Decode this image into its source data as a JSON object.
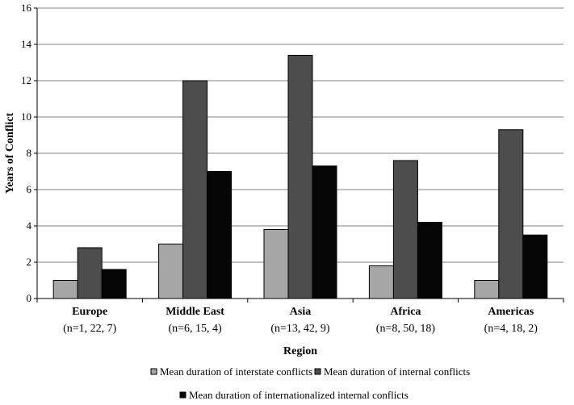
{
  "chart_data": {
    "type": "bar",
    "title": "",
    "xlabel": "Region",
    "ylabel": "Years of Conflict",
    "ylim": [
      0,
      16
    ],
    "yticks": [
      "0",
      "2",
      "4",
      "6",
      "8",
      "10",
      "12",
      "14",
      "16"
    ],
    "grid": true,
    "legend_position": "bottom",
    "categories": [
      "Europe",
      "Middle East",
      "Asia",
      "Africa",
      "Americas"
    ],
    "category_sublabels": [
      "(n=1, 22, 7)",
      "(n=6, 15, 4)",
      "(n=13, 42, 9)",
      "(n=8, 50, 18)",
      "(n=4, 18, 2)"
    ],
    "series": [
      {
        "name": "Mean duration of interstate conflicts",
        "color": "#a6a6a6",
        "values": [
          1.0,
          3.0,
          3.8,
          1.8,
          1.0
        ]
      },
      {
        "name": "Mean duration of internal conflicts",
        "color": "#4d4d4d",
        "values": [
          2.8,
          12.0,
          13.4,
          7.6,
          9.3
        ]
      },
      {
        "name": "Mean duration of internationalized internal conflicts",
        "color": "#050505",
        "values": [
          1.6,
          7.0,
          7.3,
          4.2,
          3.5
        ]
      }
    ]
  }
}
